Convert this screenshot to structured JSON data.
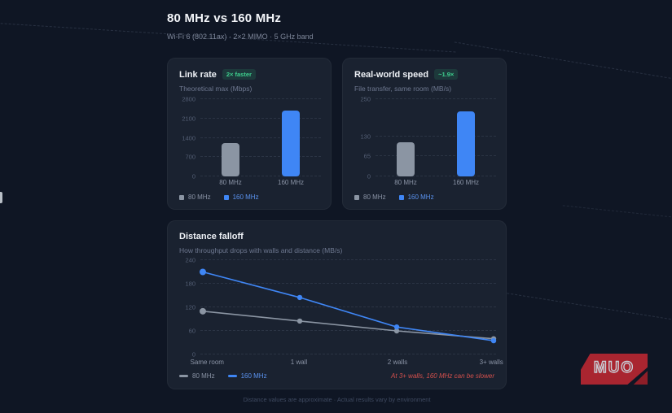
{
  "page": {
    "title": "80 MHz vs 160 MHz",
    "subtitle": "Wi-Fi 6 (802.11ax) · 2×2 MIMO · 5 GHz band",
    "footer": "Distance values are approximate · Actual results vary by environment"
  },
  "colors": {
    "background": "#0f1624",
    "card": "#1a2230",
    "bar_gray": "#8b95a3",
    "accent_blue": "#3f86f5",
    "badge_green": "#3ecf8e",
    "note_red": "#d4504c",
    "logo_red": "#a92530"
  },
  "cards": {
    "link_rate": {
      "title": "Link rate",
      "badge": "2× faster",
      "subtitle": "Theoretical max (Mbps)"
    },
    "real_world": {
      "title": "Real-world speed",
      "badge": "~1.9×",
      "subtitle": "File transfer, same room (MB/s)"
    },
    "distance": {
      "title": "Distance falloff",
      "subtitle": "How throughput drops with walls and distance (MB/s)",
      "note": "At 3+ walls, 160 MHz can be slower"
    }
  },
  "legend": {
    "s80": "80 MHz",
    "s160": "160 MHz"
  },
  "logo": {
    "text": "MUO"
  },
  "chart_data": [
    {
      "id": "link_rate",
      "type": "bar",
      "title": "Link rate",
      "ylabel": "Theoretical max (Mbps)",
      "categories": [
        "80 MHz",
        "160 MHz"
      ],
      "values": [
        1201,
        2402
      ],
      "colors": [
        "#8b95a3",
        "#3f86f5"
      ],
      "yticks": [
        0,
        700,
        1400,
        2100,
        2800
      ],
      "ylim": [
        0,
        2800
      ],
      "grid": "dashed horizontal",
      "legend_position": "bottom-left"
    },
    {
      "id": "real_world",
      "type": "bar",
      "title": "Real-world speed",
      "ylabel": "File transfer, same room (MB/s)",
      "categories": [
        "80 MHz",
        "160 MHz"
      ],
      "values": [
        110,
        210
      ],
      "colors": [
        "#8b95a3",
        "#3f86f5"
      ],
      "yticks": [
        0,
        65,
        130,
        250
      ],
      "ylim": [
        0,
        250
      ],
      "grid": "dashed horizontal",
      "legend_position": "bottom-left"
    },
    {
      "id": "distance",
      "type": "line",
      "title": "Distance falloff",
      "ylabel": "How throughput drops with walls and distance (MB/s)",
      "categories": [
        "Same room",
        "1 wall",
        "2 walls",
        "3+ walls"
      ],
      "series": [
        {
          "name": "80 MHz",
          "values": [
            110,
            85,
            60,
            40
          ],
          "color": "#8b95a3"
        },
        {
          "name": "160 MHz",
          "values": [
            210,
            145,
            70,
            35
          ],
          "color": "#3f86f5"
        }
      ],
      "yticks": [
        0,
        60,
        120,
        180,
        240
      ],
      "ylim": [
        0,
        240
      ],
      "grid": "dashed horizontal",
      "legend_position": "bottom-left",
      "annotation": "At 3+ walls, 160 MHz can be slower"
    }
  ]
}
